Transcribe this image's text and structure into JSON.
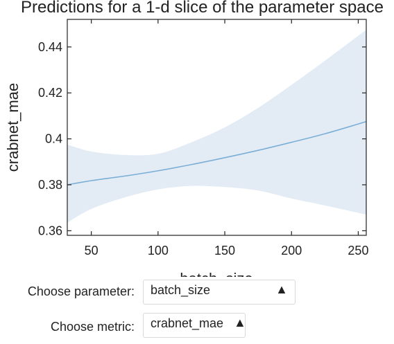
{
  "chart_data": {
    "type": "line",
    "title": "Predictions for a 1-d slice of the parameter space",
    "xlabel": "batch_size",
    "ylabel": "crabnet_mae",
    "xlim": [
      32,
      256
    ],
    "ylim": [
      0.358,
      0.452
    ],
    "xticks": [
      50,
      100,
      150,
      200,
      250
    ],
    "yticks": [
      0.36,
      0.38,
      0.4,
      0.42,
      0.44
    ],
    "ytick_labels": [
      "0.36",
      "0.38",
      "0.4",
      "0.42",
      "0.44"
    ],
    "grid": false,
    "colors": {
      "line": "#7aaed6",
      "band": "#e3ecf5"
    },
    "x": [
      32,
      50,
      75,
      100,
      125,
      150,
      175,
      200,
      225,
      256
    ],
    "mean": [
      0.38,
      0.3818,
      0.3838,
      0.3861,
      0.3888,
      0.3918,
      0.395,
      0.3985,
      0.4022,
      0.4075
    ],
    "upper": [
      0.3975,
      0.3945,
      0.393,
      0.3935,
      0.3985,
      0.405,
      0.4135,
      0.4235,
      0.434,
      0.4475
    ],
    "lower": [
      0.3635,
      0.3695,
      0.3745,
      0.378,
      0.3795,
      0.379,
      0.3775,
      0.374,
      0.371,
      0.367
    ]
  },
  "controls": {
    "parameter_label": "Choose parameter:",
    "parameter_value": "batch_size",
    "metric_label": "Choose metric:",
    "metric_value": "crabnet_mae",
    "arrow": "▲"
  }
}
